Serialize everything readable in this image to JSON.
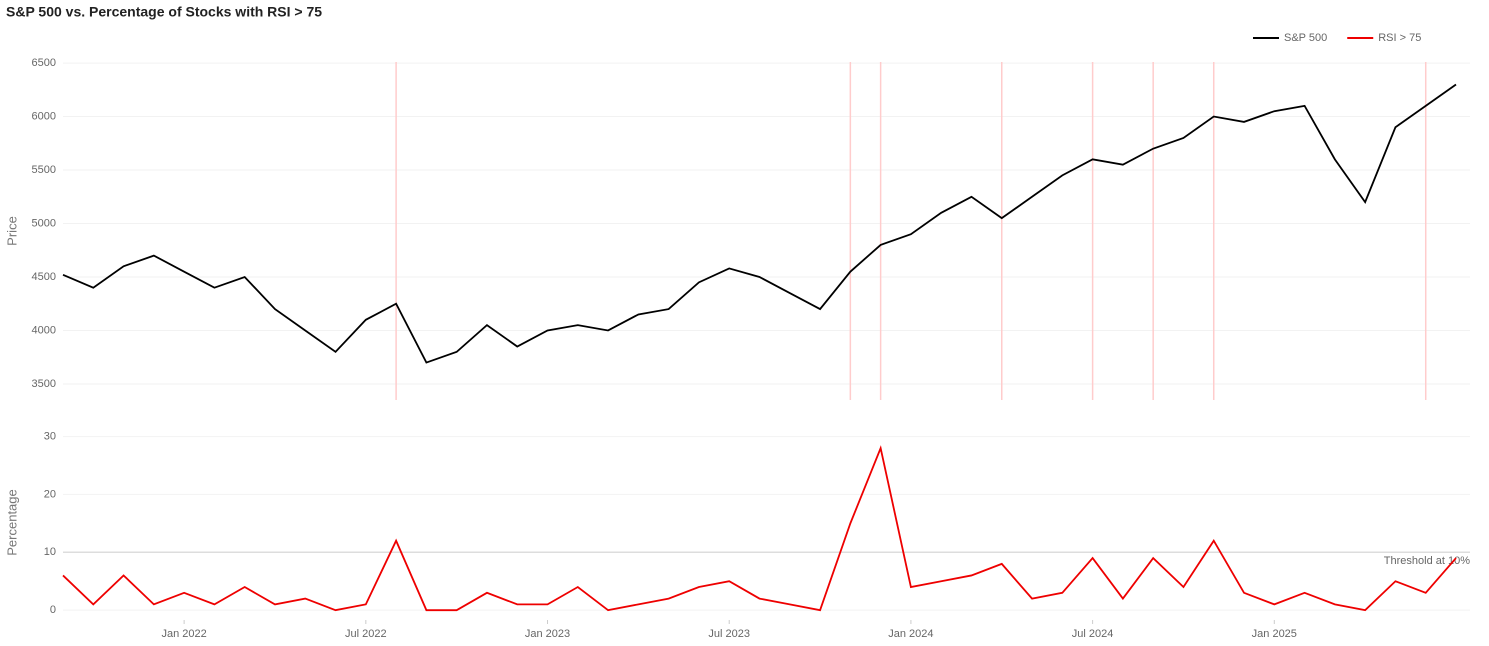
{
  "title": "S&P 500 vs. Percentage of Stocks with RSI > 75",
  "chart_data": [
    {
      "type": "line",
      "ylabel": "Price",
      "x": [
        "2021-09",
        "2021-10",
        "2021-11",
        "2021-12",
        "2022-01",
        "2022-02",
        "2022-03",
        "2022-04",
        "2022-05",
        "2022-06",
        "2022-07",
        "2022-08",
        "2022-09",
        "2022-10",
        "2022-11",
        "2022-12",
        "2023-01",
        "2023-02",
        "2023-03",
        "2023-04",
        "2023-05",
        "2023-06",
        "2023-07",
        "2023-08",
        "2023-09",
        "2023-10",
        "2023-11",
        "2023-12",
        "2024-01",
        "2024-02",
        "2024-03",
        "2024-04",
        "2024-05",
        "2024-06",
        "2024-07",
        "2024-08",
        "2024-09",
        "2024-10",
        "2024-11",
        "2024-12",
        "2025-01",
        "2025-02",
        "2025-03",
        "2025-04",
        "2025-05",
        "2025-06",
        "2025-07"
      ],
      "series": [
        {
          "name": "S&P 500",
          "color": "#000000",
          "values": [
            4520,
            4400,
            4600,
            4700,
            4550,
            4400,
            4500,
            4200,
            4000,
            3800,
            4100,
            4250,
            3700,
            3800,
            4050,
            3850,
            4000,
            4050,
            4000,
            4150,
            4200,
            4450,
            4580,
            4500,
            4350,
            4200,
            4550,
            4800,
            4900,
            5100,
            5250,
            5050,
            5250,
            5450,
            5600,
            5550,
            5700,
            5800,
            6000,
            5950,
            6050,
            6100,
            5600,
            5200,
            5900,
            6100,
            6300
          ]
        }
      ],
      "highlight_dates": [
        "2022-08",
        "2023-11",
        "2023-12",
        "2024-04",
        "2024-07",
        "2024-09",
        "2024-11",
        "2025-06"
      ],
      "highlight_color": "#ffcccc",
      "xlim": [
        "2021-09",
        "2025-07"
      ],
      "ylim": [
        3350,
        6510
      ],
      "yticks": [
        3500,
        4000,
        4500,
        5000,
        5500,
        6000,
        6500
      ]
    },
    {
      "type": "line",
      "ylabel": "Percentage",
      "x": [
        "2021-09",
        "2021-10",
        "2021-11",
        "2021-12",
        "2022-01",
        "2022-02",
        "2022-03",
        "2022-04",
        "2022-05",
        "2022-06",
        "2022-07",
        "2022-08",
        "2022-09",
        "2022-10",
        "2022-11",
        "2022-12",
        "2023-01",
        "2023-02",
        "2023-03",
        "2023-04",
        "2023-05",
        "2023-06",
        "2023-07",
        "2023-08",
        "2023-09",
        "2023-10",
        "2023-11",
        "2023-12",
        "2024-01",
        "2024-02",
        "2024-03",
        "2024-04",
        "2024-05",
        "2024-06",
        "2024-07",
        "2024-08",
        "2024-09",
        "2024-10",
        "2024-11",
        "2024-12",
        "2025-01",
        "2025-02",
        "2025-03",
        "2025-04",
        "2025-05",
        "2025-06",
        "2025-07"
      ],
      "series": [
        {
          "name": "RSI > 75",
          "color": "#ee0000",
          "values": [
            6,
            1,
            6,
            1,
            3,
            1,
            4,
            1,
            2,
            0,
            1,
            12,
            0,
            0,
            3,
            1,
            1,
            4,
            0,
            1,
            2,
            4,
            5,
            2,
            1,
            0,
            15,
            28,
            4,
            5,
            6,
            8,
            2,
            3,
            9,
            2,
            9,
            4,
            12,
            3,
            1,
            3,
            1,
            0,
            5,
            3,
            9
          ]
        }
      ],
      "threshold": 10,
      "threshold_label": "Threshold at 10%",
      "xlim": [
        "2021-09",
        "2025-07"
      ],
      "xticks": [
        {
          "value": "2022-01",
          "label": "Jan 2022"
        },
        {
          "value": "2022-07",
          "label": "Jul 2022"
        },
        {
          "value": "2023-01",
          "label": "Jan 2023"
        },
        {
          "value": "2023-07",
          "label": "Jul 2023"
        },
        {
          "value": "2024-01",
          "label": "Jan 2024"
        },
        {
          "value": "2024-07",
          "label": "Jul 2024"
        },
        {
          "value": "2025-01",
          "label": "Jan 2025"
        }
      ],
      "ylim": [
        -1.7,
        32
      ],
      "yticks": [
        0,
        10,
        20,
        30
      ]
    }
  ]
}
